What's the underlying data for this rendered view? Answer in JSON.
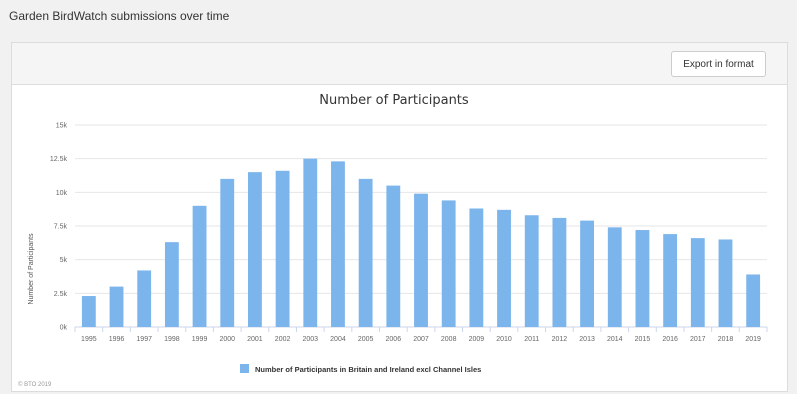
{
  "page": {
    "title": "Garden BirdWatch submissions over time"
  },
  "toolbar": {
    "export_label": "Export in format"
  },
  "credit": "© BTO 2019",
  "colors": {
    "bar": "#7cb5ec",
    "grid": "#e6e6e6"
  },
  "chart_data": {
    "type": "bar",
    "title": "Number of Participants",
    "xlabel": "",
    "ylabel": "Number of Participants",
    "ylim": [
      0,
      15000
    ],
    "yticks": [
      0,
      2500,
      5000,
      7500,
      10000,
      12500,
      15000
    ],
    "ytick_labels": [
      "0k",
      "2.5k",
      "5k",
      "7.5k",
      "10k",
      "12.5k",
      "15k"
    ],
    "grid": true,
    "legend_position": "bottom-center",
    "categories": [
      "1995",
      "1996",
      "1997",
      "1998",
      "1999",
      "2000",
      "2001",
      "2002",
      "2003",
      "2004",
      "2005",
      "2006",
      "2007",
      "2008",
      "2009",
      "2010",
      "2011",
      "2012",
      "2013",
      "2014",
      "2015",
      "2016",
      "2017",
      "2018",
      "2019"
    ],
    "series": [
      {
        "name": "Number of Participants in Britain and Ireland excl Channel Isles",
        "values": [
          2300,
          3000,
          4200,
          6300,
          9000,
          11000,
          11500,
          11600,
          12500,
          12300,
          11000,
          10500,
          9900,
          9400,
          8800,
          8700,
          8300,
          8100,
          7900,
          7400,
          7200,
          6900,
          6600,
          6500,
          3900
        ]
      }
    ]
  }
}
